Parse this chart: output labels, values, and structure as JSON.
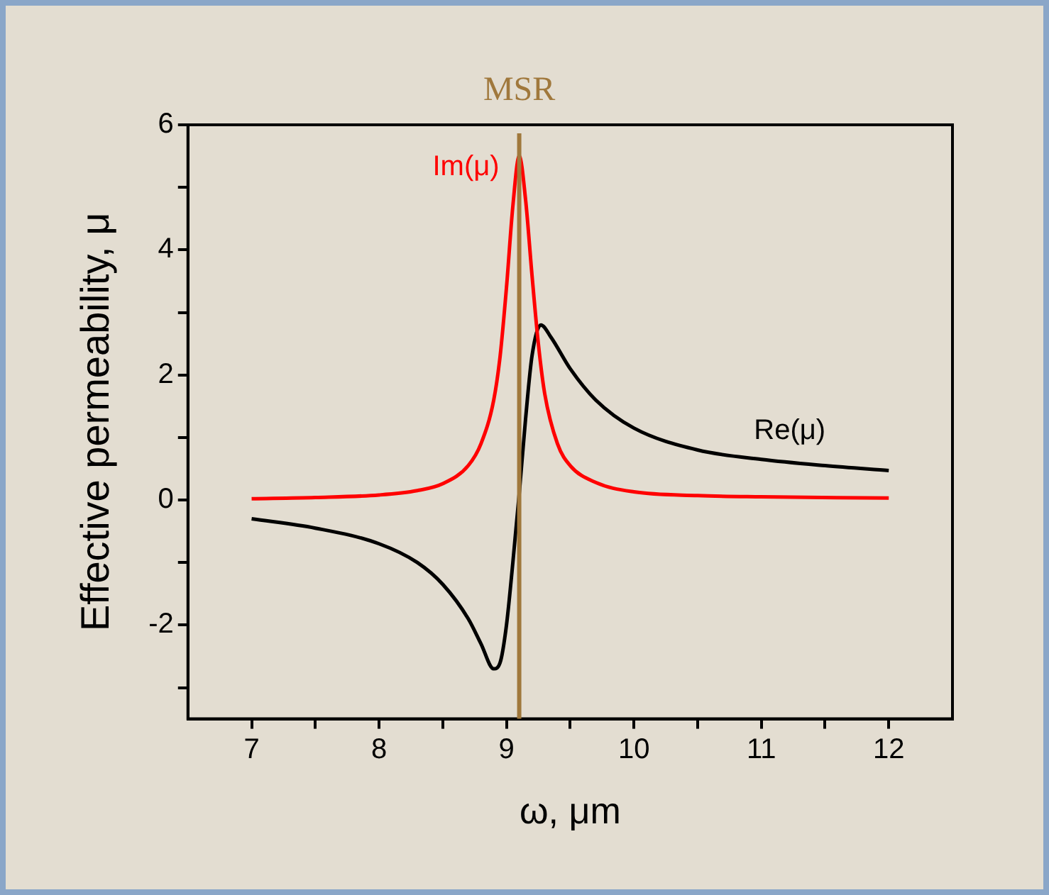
{
  "chart_data": {
    "type": "line",
    "xlabel": "ω, μm",
    "ylabel": "Effective permeability, μ",
    "x": [
      7.0,
      7.5,
      8.0,
      8.3,
      8.5,
      8.7,
      8.8,
      8.9,
      8.95,
      9.0,
      9.05,
      9.1,
      9.15,
      9.2,
      9.27,
      9.35,
      9.5,
      9.7,
      10.0,
      10.5,
      11.0,
      11.5,
      12.0
    ],
    "series": [
      {
        "name": "Im(μ)",
        "color": "#ff0000",
        "x": [
          7.0,
          7.5,
          8.0,
          8.3,
          8.5,
          8.7,
          8.8,
          8.9,
          8.95,
          9.0,
          9.05,
          9.1,
          9.15,
          9.2,
          9.25,
          9.3,
          9.4,
          9.5,
          9.7,
          10.0,
          10.5,
          11.0,
          12.0
        ],
        "values": [
          0.02,
          0.04,
          0.08,
          0.15,
          0.26,
          0.55,
          0.9,
          1.6,
          2.3,
          3.4,
          4.7,
          5.5,
          4.8,
          3.6,
          2.5,
          1.7,
          0.9,
          0.55,
          0.28,
          0.13,
          0.07,
          0.05,
          0.03
        ]
      },
      {
        "name": "Re(μ)",
        "color": "#000000",
        "values": [
          -0.3,
          -0.45,
          -0.7,
          -1.0,
          -1.35,
          -1.9,
          -2.3,
          -2.7,
          -2.6,
          -2.0,
          -1.0,
          0.1,
          1.3,
          2.3,
          2.8,
          2.6,
          2.1,
          1.6,
          1.15,
          0.8,
          0.65,
          0.55,
          0.47
        ]
      }
    ],
    "xlim": [
      6.5,
      12.5
    ],
    "xticks": [
      7,
      {
        "value": 7.5,
        "label": null
      },
      8,
      {
        "value": 8.5,
        "label": null
      },
      9,
      {
        "value": 9.5,
        "label": null
      },
      10,
      {
        "value": 10.5,
        "label": null
      },
      11,
      {
        "value": 11.5,
        "label": null
      },
      12
    ],
    "ylim": [
      -3.5,
      6
    ],
    "yticks": [
      {
        "value": -3,
        "label": null
      },
      -2,
      {
        "value": -1,
        "label": null
      },
      0,
      {
        "value": 1,
        "label": null
      },
      2,
      {
        "value": 3,
        "label": null
      },
      4,
      {
        "value": 5,
        "label": null
      },
      6
    ],
    "ref_lines": [
      {
        "axis": "x",
        "value": 9.1,
        "label": "MSR",
        "color": "#a0783c"
      }
    ],
    "grid": false,
    "legend": false,
    "marker": "none",
    "line_style": "solid"
  }
}
